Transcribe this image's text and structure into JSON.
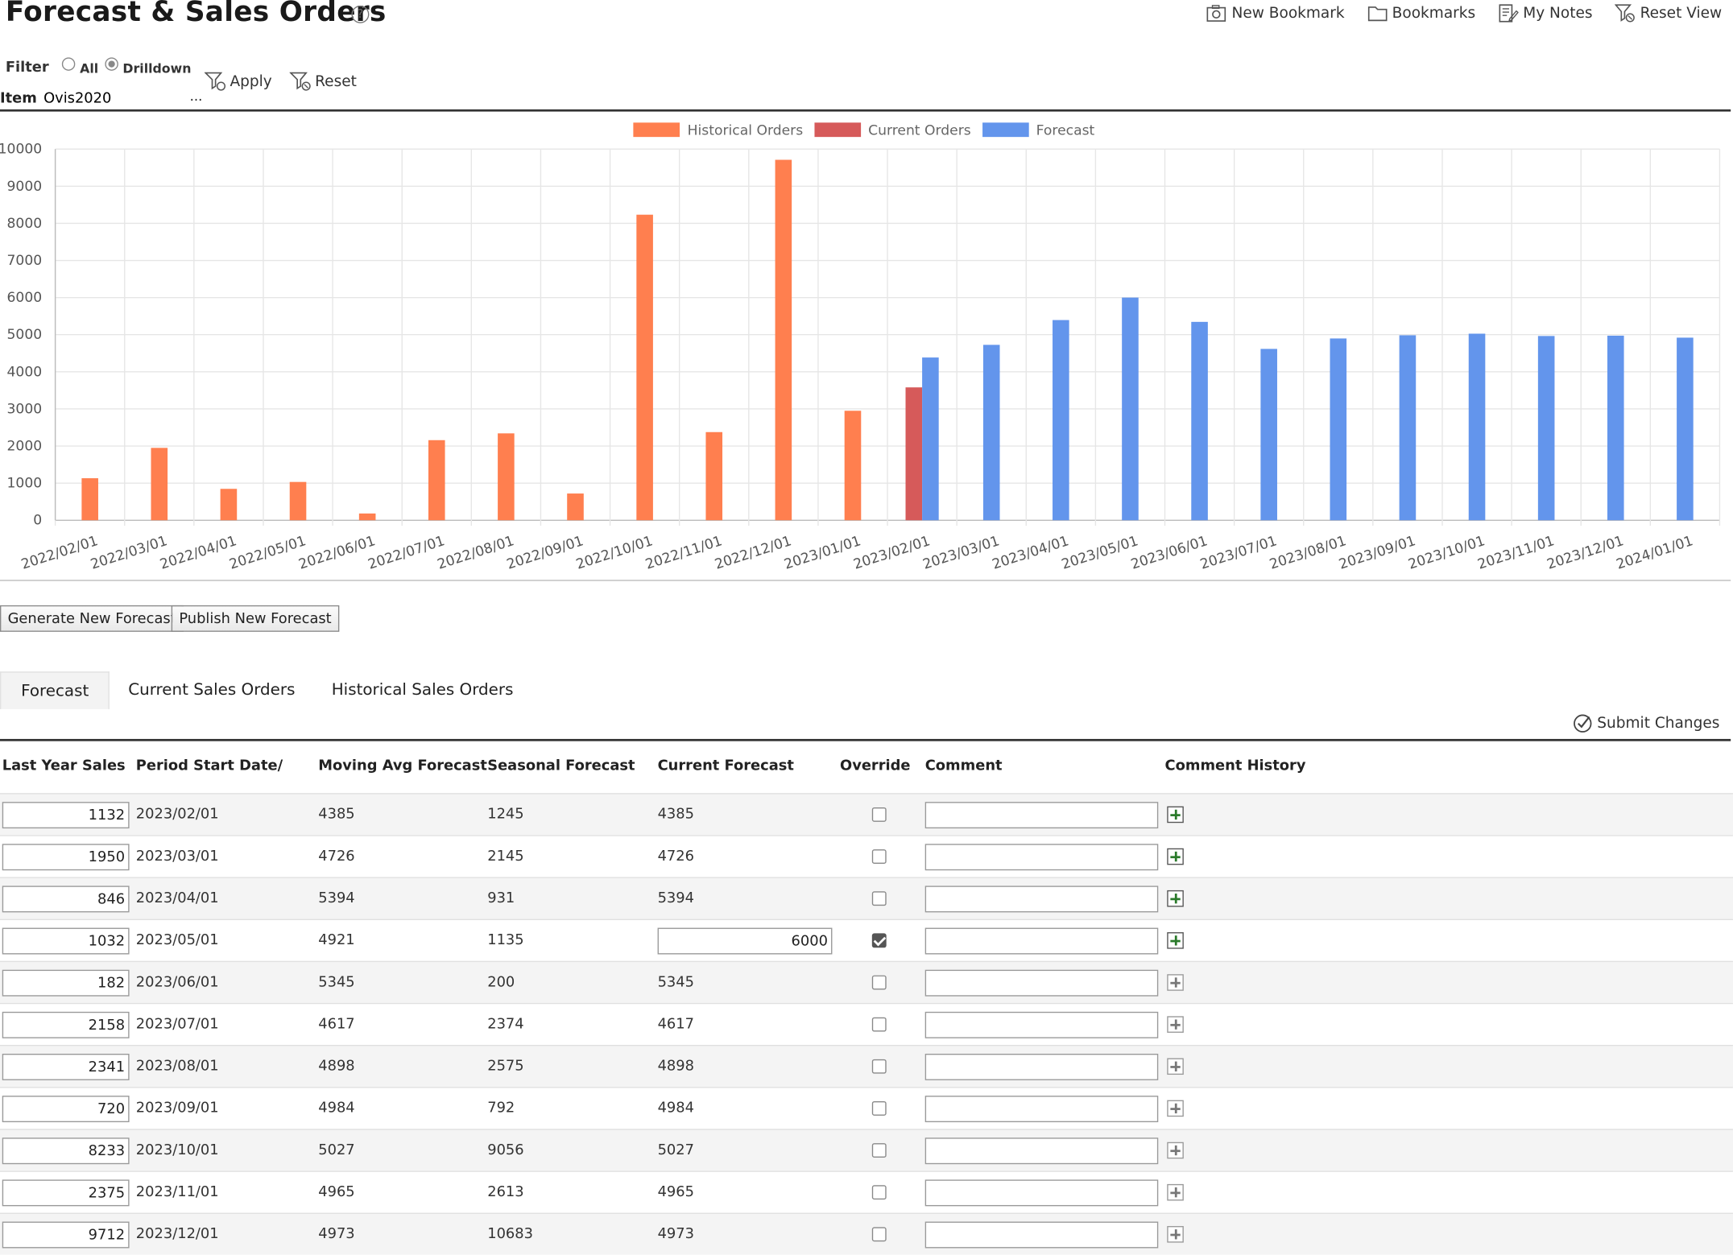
{
  "header": {
    "title": "Forecast & Sales Orders",
    "help_glyph": "?",
    "toolbar": [
      {
        "label": "New Bookmark",
        "icon": "camera-icon"
      },
      {
        "label": "Bookmarks",
        "icon": "folder-icon"
      },
      {
        "label": "My Notes",
        "icon": "notes-icon"
      },
      {
        "label": "Reset View",
        "icon": "filter-reset-icon"
      }
    ]
  },
  "filter": {
    "label": "Filter",
    "options": [
      "All",
      "Drilldown"
    ],
    "selected": "Drilldown",
    "apply_label": "Apply",
    "reset_label": "Reset",
    "item_label": "Item",
    "item_value": "Ovis2020",
    "item_button": "..."
  },
  "chart_data": {
    "type": "bar",
    "ylim": [
      0,
      10000
    ],
    "yticks": [
      0,
      1000,
      2000,
      3000,
      4000,
      5000,
      6000,
      7000,
      8000,
      9000,
      10000
    ],
    "grid": true,
    "legend_position": "top",
    "categories": [
      "2022/02/01",
      "2022/03/01",
      "2022/04/01",
      "2022/05/01",
      "2022/06/01",
      "2022/07/01",
      "2022/08/01",
      "2022/09/01",
      "2022/10/01",
      "2022/11/01",
      "2022/12/01",
      "2023/01/01",
      "2023/02/01",
      "2023/03/01",
      "2023/04/01",
      "2023/05/01",
      "2023/06/01",
      "2023/07/01",
      "2023/08/01",
      "2023/09/01",
      "2023/10/01",
      "2023/11/01",
      "2023/12/01",
      "2024/01/01"
    ],
    "series": [
      {
        "name": "Historical Orders",
        "color": "#ff7f4f",
        "values": [
          1132,
          1950,
          846,
          1032,
          182,
          2158,
          2341,
          720,
          8233,
          2375,
          9712,
          2950,
          null,
          null,
          null,
          null,
          null,
          null,
          null,
          null,
          null,
          null,
          null,
          null
        ]
      },
      {
        "name": "Current Orders",
        "color": "#d65a5a",
        "values": [
          null,
          null,
          null,
          null,
          null,
          null,
          null,
          null,
          null,
          null,
          null,
          null,
          3580,
          null,
          null,
          null,
          null,
          null,
          null,
          null,
          null,
          null,
          null,
          null
        ]
      },
      {
        "name": "Forecast",
        "color": "#6395ec",
        "values": [
          null,
          null,
          null,
          null,
          null,
          null,
          null,
          null,
          null,
          null,
          null,
          null,
          4385,
          4726,
          5394,
          6000,
          5345,
          4617,
          4898,
          4984,
          5027,
          4965,
          4973,
          4920
        ]
      }
    ]
  },
  "actions": {
    "generate_label": "Generate New Forecast",
    "publish_label": "Publish New Forecast"
  },
  "tabs": [
    {
      "label": "Forecast",
      "active": true
    },
    {
      "label": "Current Sales Orders",
      "active": false
    },
    {
      "label": "Historical Sales Orders",
      "active": false
    }
  ],
  "submit_label": "Submit Changes",
  "table": {
    "headers": [
      "Last Year Sales",
      "Period Start Date/",
      "Moving Avg Forecast",
      "Seasonal Forecast",
      "Current Forecast",
      "Override",
      "Comment",
      "Comment History"
    ],
    "rows": [
      {
        "last_year": "1132",
        "period": "2023/02/01",
        "mavg": "4385",
        "seasonal": "1245",
        "current": "4385",
        "override": false
      },
      {
        "last_year": "1950",
        "period": "2023/03/01",
        "mavg": "4726",
        "seasonal": "2145",
        "current": "4726",
        "override": false
      },
      {
        "last_year": "846",
        "period": "2023/04/01",
        "mavg": "5394",
        "seasonal": "931",
        "current": "5394",
        "override": false
      },
      {
        "last_year": "1032",
        "period": "2023/05/01",
        "mavg": "4921",
        "seasonal": "1135",
        "current": "6000",
        "override": true
      },
      {
        "last_year": "182",
        "period": "2023/06/01",
        "mavg": "5345",
        "seasonal": "200",
        "current": "5345",
        "override": false
      },
      {
        "last_year": "2158",
        "period": "2023/07/01",
        "mavg": "4617",
        "seasonal": "2374",
        "current": "4617",
        "override": false
      },
      {
        "last_year": "2341",
        "period": "2023/08/01",
        "mavg": "4898",
        "seasonal": "2575",
        "current": "4898",
        "override": false
      },
      {
        "last_year": "720",
        "period": "2023/09/01",
        "mavg": "4984",
        "seasonal": "792",
        "current": "4984",
        "override": false
      },
      {
        "last_year": "8233",
        "period": "2023/10/01",
        "mavg": "5027",
        "seasonal": "9056",
        "current": "5027",
        "override": false
      },
      {
        "last_year": "2375",
        "period": "2023/11/01",
        "mavg": "4965",
        "seasonal": "2613",
        "current": "4965",
        "override": false
      },
      {
        "last_year": "9712",
        "period": "2023/12/01",
        "mavg": "4973",
        "seasonal": "10683",
        "current": "4973",
        "override": false
      }
    ]
  }
}
